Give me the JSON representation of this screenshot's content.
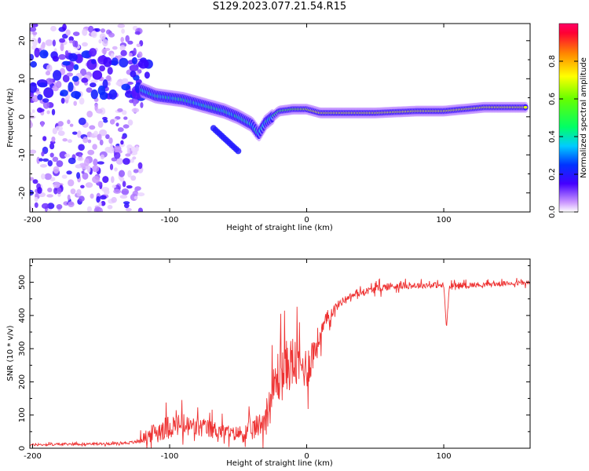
{
  "title": "S129.2023.077.21.54.R15",
  "chart_data": [
    {
      "type": "heatmap",
      "xlabel": "Height of straight line (km)",
      "ylabel": "Frequency (Hz)",
      "xlim": [
        -202,
        163
      ],
      "ylim": [
        -25,
        24.5
      ],
      "xticks": [
        -200,
        -100,
        0,
        100
      ],
      "yticks": [
        -20,
        -10,
        0,
        10,
        20
      ],
      "colorbar": {
        "label": "Normalized spectral amplitude",
        "range": [
          0,
          1
        ],
        "ticks": [
          0.0,
          0.2,
          0.4,
          0.6,
          0.8
        ],
        "tick_labels": [
          "0.0",
          "0.2",
          "0.4",
          "0.6",
          "0.8"
        ],
        "colormap": "rainbow"
      },
      "ridge": {
        "name": "",
        "x": [
          -120,
          -110,
          -100,
          -90,
          -80,
          -70,
          -60,
          -50,
          -40,
          -35,
          -30,
          -20,
          -10,
          0,
          10,
          30,
          50,
          80,
          100,
          130,
          160
        ],
        "y": [
          7,
          5.5,
          5,
          4.5,
          3.5,
          2.5,
          1.5,
          0,
          -2,
          -4.5,
          -1.5,
          1.5,
          2,
          2,
          1,
          1,
          1,
          1.5,
          1.5,
          2.5,
          2.5
        ]
      },
      "noise_region_x": [
        -202,
        -120
      ]
    },
    {
      "type": "line",
      "xlabel": "Height of straight line (km)",
      "ylabel": "SNR (10 * v/v)",
      "xlim": [
        -202,
        163
      ],
      "ylim": [
        0,
        570
      ],
      "xticks": [
        -200,
        -100,
        0,
        100
      ],
      "yticks": [
        0,
        100,
        200,
        300,
        400,
        500
      ],
      "color": "#ee3333",
      "series": [
        {
          "name": "",
          "x": [
            -202,
            -180,
            -160,
            -140,
            -125,
            -115,
            -105,
            -95,
            -85,
            -75,
            -65,
            -55,
            -45,
            -38,
            -32,
            -27,
            -22,
            -18,
            -14,
            -10,
            -6,
            -2,
            2,
            6,
            10,
            15,
            20,
            25,
            30,
            40,
            50,
            60,
            70,
            80,
            90,
            100,
            102,
            104,
            110,
            120,
            130,
            140,
            150,
            163
          ],
          "y": [
            10,
            12,
            13,
            14,
            18,
            40,
            60,
            70,
            65,
            60,
            55,
            45,
            45,
            60,
            80,
            130,
            210,
            230,
            250,
            260,
            250,
            240,
            260,
            300,
            340,
            390,
            420,
            440,
            455,
            470,
            480,
            488,
            490,
            490,
            492,
            490,
            360,
            485,
            490,
            492,
            493,
            495,
            497,
            498
          ],
          "noise_amplitude": [
            6,
            6,
            6,
            6,
            8,
            40,
            60,
            60,
            55,
            50,
            45,
            30,
            50,
            60,
            60,
            100,
            140,
            150,
            130,
            140,
            120,
            100,
            110,
            90,
            60,
            40,
            25,
            20,
            15,
            15,
            20,
            20,
            18,
            15,
            15,
            15,
            0,
            15,
            15,
            15,
            12,
            12,
            12,
            12
          ]
        }
      ]
    }
  ]
}
